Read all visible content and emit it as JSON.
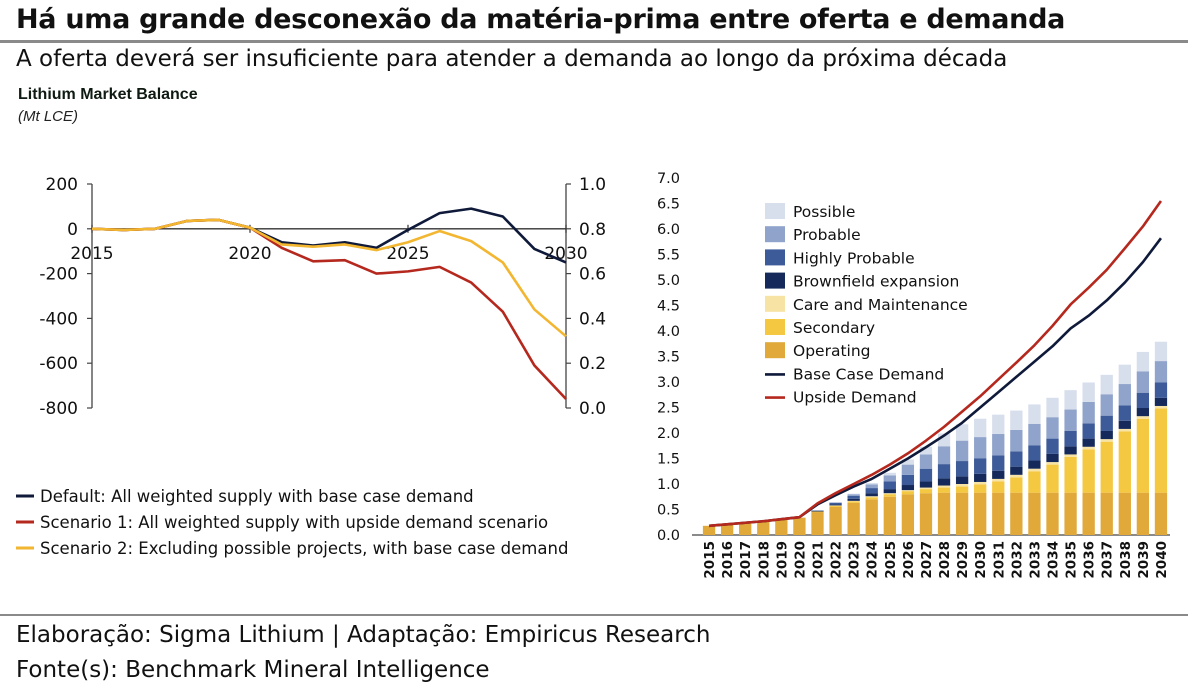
{
  "header": {
    "title": "Há uma grande desconexão da matéria-prima entre oferta e demanda",
    "subtitle": "A oferta deverá ser insuficiente para atender a demanda ao longo da próxima década"
  },
  "footer": {
    "credit": "Elaboração: Sigma Lithium | Adaptação: Empiricus Research",
    "source": "Fonte(s): Benchmark Mineral Intelligence"
  },
  "colors": {
    "default": "#0f1a3a",
    "scenario1": "#b5281e",
    "scenario2": "#f2b630",
    "operating": "#e0a93a",
    "secondary": "#f5c842",
    "care": "#f7e3a3",
    "brownfield": "#152a5a",
    "highly_probable": "#3d5b98",
    "probable": "#8fa3cb",
    "possible": "#d7deec",
    "base_demand": "#0f1a3a",
    "upside_demand": "#b5281e"
  },
  "chart_data": [
    {
      "type": "line",
      "title": "Lithium Market Balance",
      "subtitle": "(Mt LCE)",
      "x": [
        2015,
        2016,
        2017,
        2018,
        2019,
        2020,
        2021,
        2022,
        2023,
        2024,
        2025,
        2026,
        2027,
        2028,
        2029,
        2030
      ],
      "x_ticks": [
        "2015",
        "2020",
        "2025",
        "2030"
      ],
      "xlim": [
        2015,
        2030
      ],
      "y_left_ticks": [
        "200",
        "0",
        "-200",
        "-400",
        "-600",
        "-800"
      ],
      "y_left_lim": [
        -800,
        200
      ],
      "y_right_ticks": [
        "1.0",
        "0.8",
        "0.6",
        "0.4",
        "0.2",
        "0.0"
      ],
      "y_right_lim": [
        0.0,
        1.0
      ],
      "grid": false,
      "legend": "bottom",
      "series": [
        {
          "name": "Default: All weighted  supply with base case demand",
          "color_key": "default",
          "values": [
            0,
            -5,
            0,
            35,
            40,
            5,
            -60,
            -75,
            -60,
            -85,
            -5,
            70,
            90,
            55,
            -90,
            -150
          ]
        },
        {
          "name": "Scenario 1: All weighted supply with upside demand scenario",
          "color_key": "scenario1",
          "values": [
            0,
            -5,
            0,
            35,
            40,
            5,
            -85,
            -145,
            -140,
            -200,
            -190,
            -170,
            -240,
            -370,
            -610,
            -760
          ]
        },
        {
          "name": "Scenario 2: Excluding possible projects, with base case demand",
          "color_key": "scenario2",
          "values": [
            0,
            -5,
            0,
            35,
            40,
            5,
            -70,
            -80,
            -70,
            -95,
            -60,
            -10,
            -55,
            -150,
            -360,
            -480
          ]
        }
      ]
    },
    {
      "type": "bar",
      "stacked": true,
      "categories": [
        "2015",
        "2016",
        "2017",
        "2018",
        "2019",
        "2020",
        "2021",
        "2022",
        "2023",
        "2024",
        "2025",
        "2026",
        "2027",
        "2028",
        "2029",
        "2030",
        "2031",
        "2032",
        "2033",
        "2034",
        "2035",
        "2036",
        "2037",
        "2038",
        "2039",
        "2040"
      ],
      "ylim": [
        0.0,
        7.0
      ],
      "y_ticks": [
        "7.0",
        "6.5",
        "6.0",
        "5.5",
        "5.0",
        "4.5",
        "4.0",
        "3.5",
        "3.0",
        "2.5",
        "2.0",
        "1.5",
        "1.0",
        "0.5",
        "0.0"
      ],
      "legend": "top-left",
      "series": [
        {
          "name": "Operating",
          "color_key": "operating",
          "values": [
            0.18,
            0.21,
            0.24,
            0.27,
            0.3,
            0.34,
            0.45,
            0.55,
            0.63,
            0.7,
            0.75,
            0.8,
            0.82,
            0.83,
            0.83,
            0.83,
            0.83,
            0.83,
            0.83,
            0.83,
            0.83,
            0.83,
            0.83,
            0.83,
            0.83,
            0.83
          ]
        },
        {
          "name": "Secondary",
          "color_key": "secondary",
          "values": [
            0,
            0,
            0,
            0,
            0,
            0,
            0.01,
            0.02,
            0.03,
            0.04,
            0.05,
            0.06,
            0.08,
            0.1,
            0.12,
            0.16,
            0.22,
            0.3,
            0.42,
            0.55,
            0.7,
            0.85,
            1.0,
            1.2,
            1.45,
            1.65
          ]
        },
        {
          "name": "Care and Maintenance",
          "color_key": "care",
          "values": [
            0,
            0,
            0,
            0,
            0,
            0,
            0,
            0.01,
            0.01,
            0.02,
            0.02,
            0.02,
            0.03,
            0.04,
            0.05,
            0.05,
            0.05,
            0.05,
            0.05,
            0.05,
            0.05,
            0.05,
            0.05,
            0.05,
            0.05,
            0.05
          ]
        },
        {
          "name": "Brownfield expansion",
          "color_key": "brownfield",
          "values": [
            0,
            0,
            0,
            0,
            0,
            0,
            0.01,
            0.02,
            0.04,
            0.06,
            0.08,
            0.1,
            0.12,
            0.14,
            0.15,
            0.16,
            0.16,
            0.16,
            0.16,
            0.16,
            0.16,
            0.16,
            0.16,
            0.16,
            0.16,
            0.16
          ]
        },
        {
          "name": "Highly Probable",
          "color_key": "highly_probable",
          "values": [
            0,
            0,
            0,
            0,
            0,
            0,
            0.01,
            0.03,
            0.06,
            0.1,
            0.15,
            0.2,
            0.25,
            0.28,
            0.3,
            0.3,
            0.3,
            0.3,
            0.3,
            0.3,
            0.3,
            0.3,
            0.3,
            0.3,
            0.3,
            0.3
          ]
        },
        {
          "name": "Probable",
          "color_key": "probable",
          "values": [
            0,
            0,
            0,
            0,
            0,
            0,
            0,
            0.01,
            0.03,
            0.07,
            0.12,
            0.2,
            0.28,
            0.35,
            0.4,
            0.42,
            0.42,
            0.42,
            0.42,
            0.42,
            0.42,
            0.42,
            0.42,
            0.42,
            0.42,
            0.42
          ]
        },
        {
          "name": "Possible",
          "color_key": "possible",
          "values": [
            0,
            0,
            0,
            0,
            0,
            0,
            0,
            0,
            0.01,
            0.03,
            0.05,
            0.1,
            0.15,
            0.25,
            0.32,
            0.36,
            0.38,
            0.38,
            0.38,
            0.38,
            0.38,
            0.38,
            0.38,
            0.38,
            0.38,
            0.38
          ]
        }
      ],
      "lines": [
        {
          "name": "Base Case Demand",
          "color_key": "base_demand",
          "values": [
            0.18,
            0.21,
            0.24,
            0.27,
            0.31,
            0.35,
            0.6,
            0.78,
            0.95,
            1.1,
            1.3,
            1.5,
            1.72,
            1.95,
            2.2,
            2.5,
            2.8,
            3.1,
            3.4,
            3.7,
            4.05,
            4.3,
            4.6,
            4.95,
            5.35,
            5.82
          ]
        },
        {
          "name": "Upside Demand",
          "color_key": "upside_demand",
          "values": [
            0.18,
            0.21,
            0.24,
            0.27,
            0.31,
            0.35,
            0.62,
            0.82,
            1.0,
            1.18,
            1.38,
            1.6,
            1.85,
            2.12,
            2.42,
            2.72,
            3.05,
            3.38,
            3.72,
            4.1,
            4.52,
            4.85,
            5.2,
            5.62,
            6.05,
            6.55
          ]
        }
      ]
    }
  ]
}
